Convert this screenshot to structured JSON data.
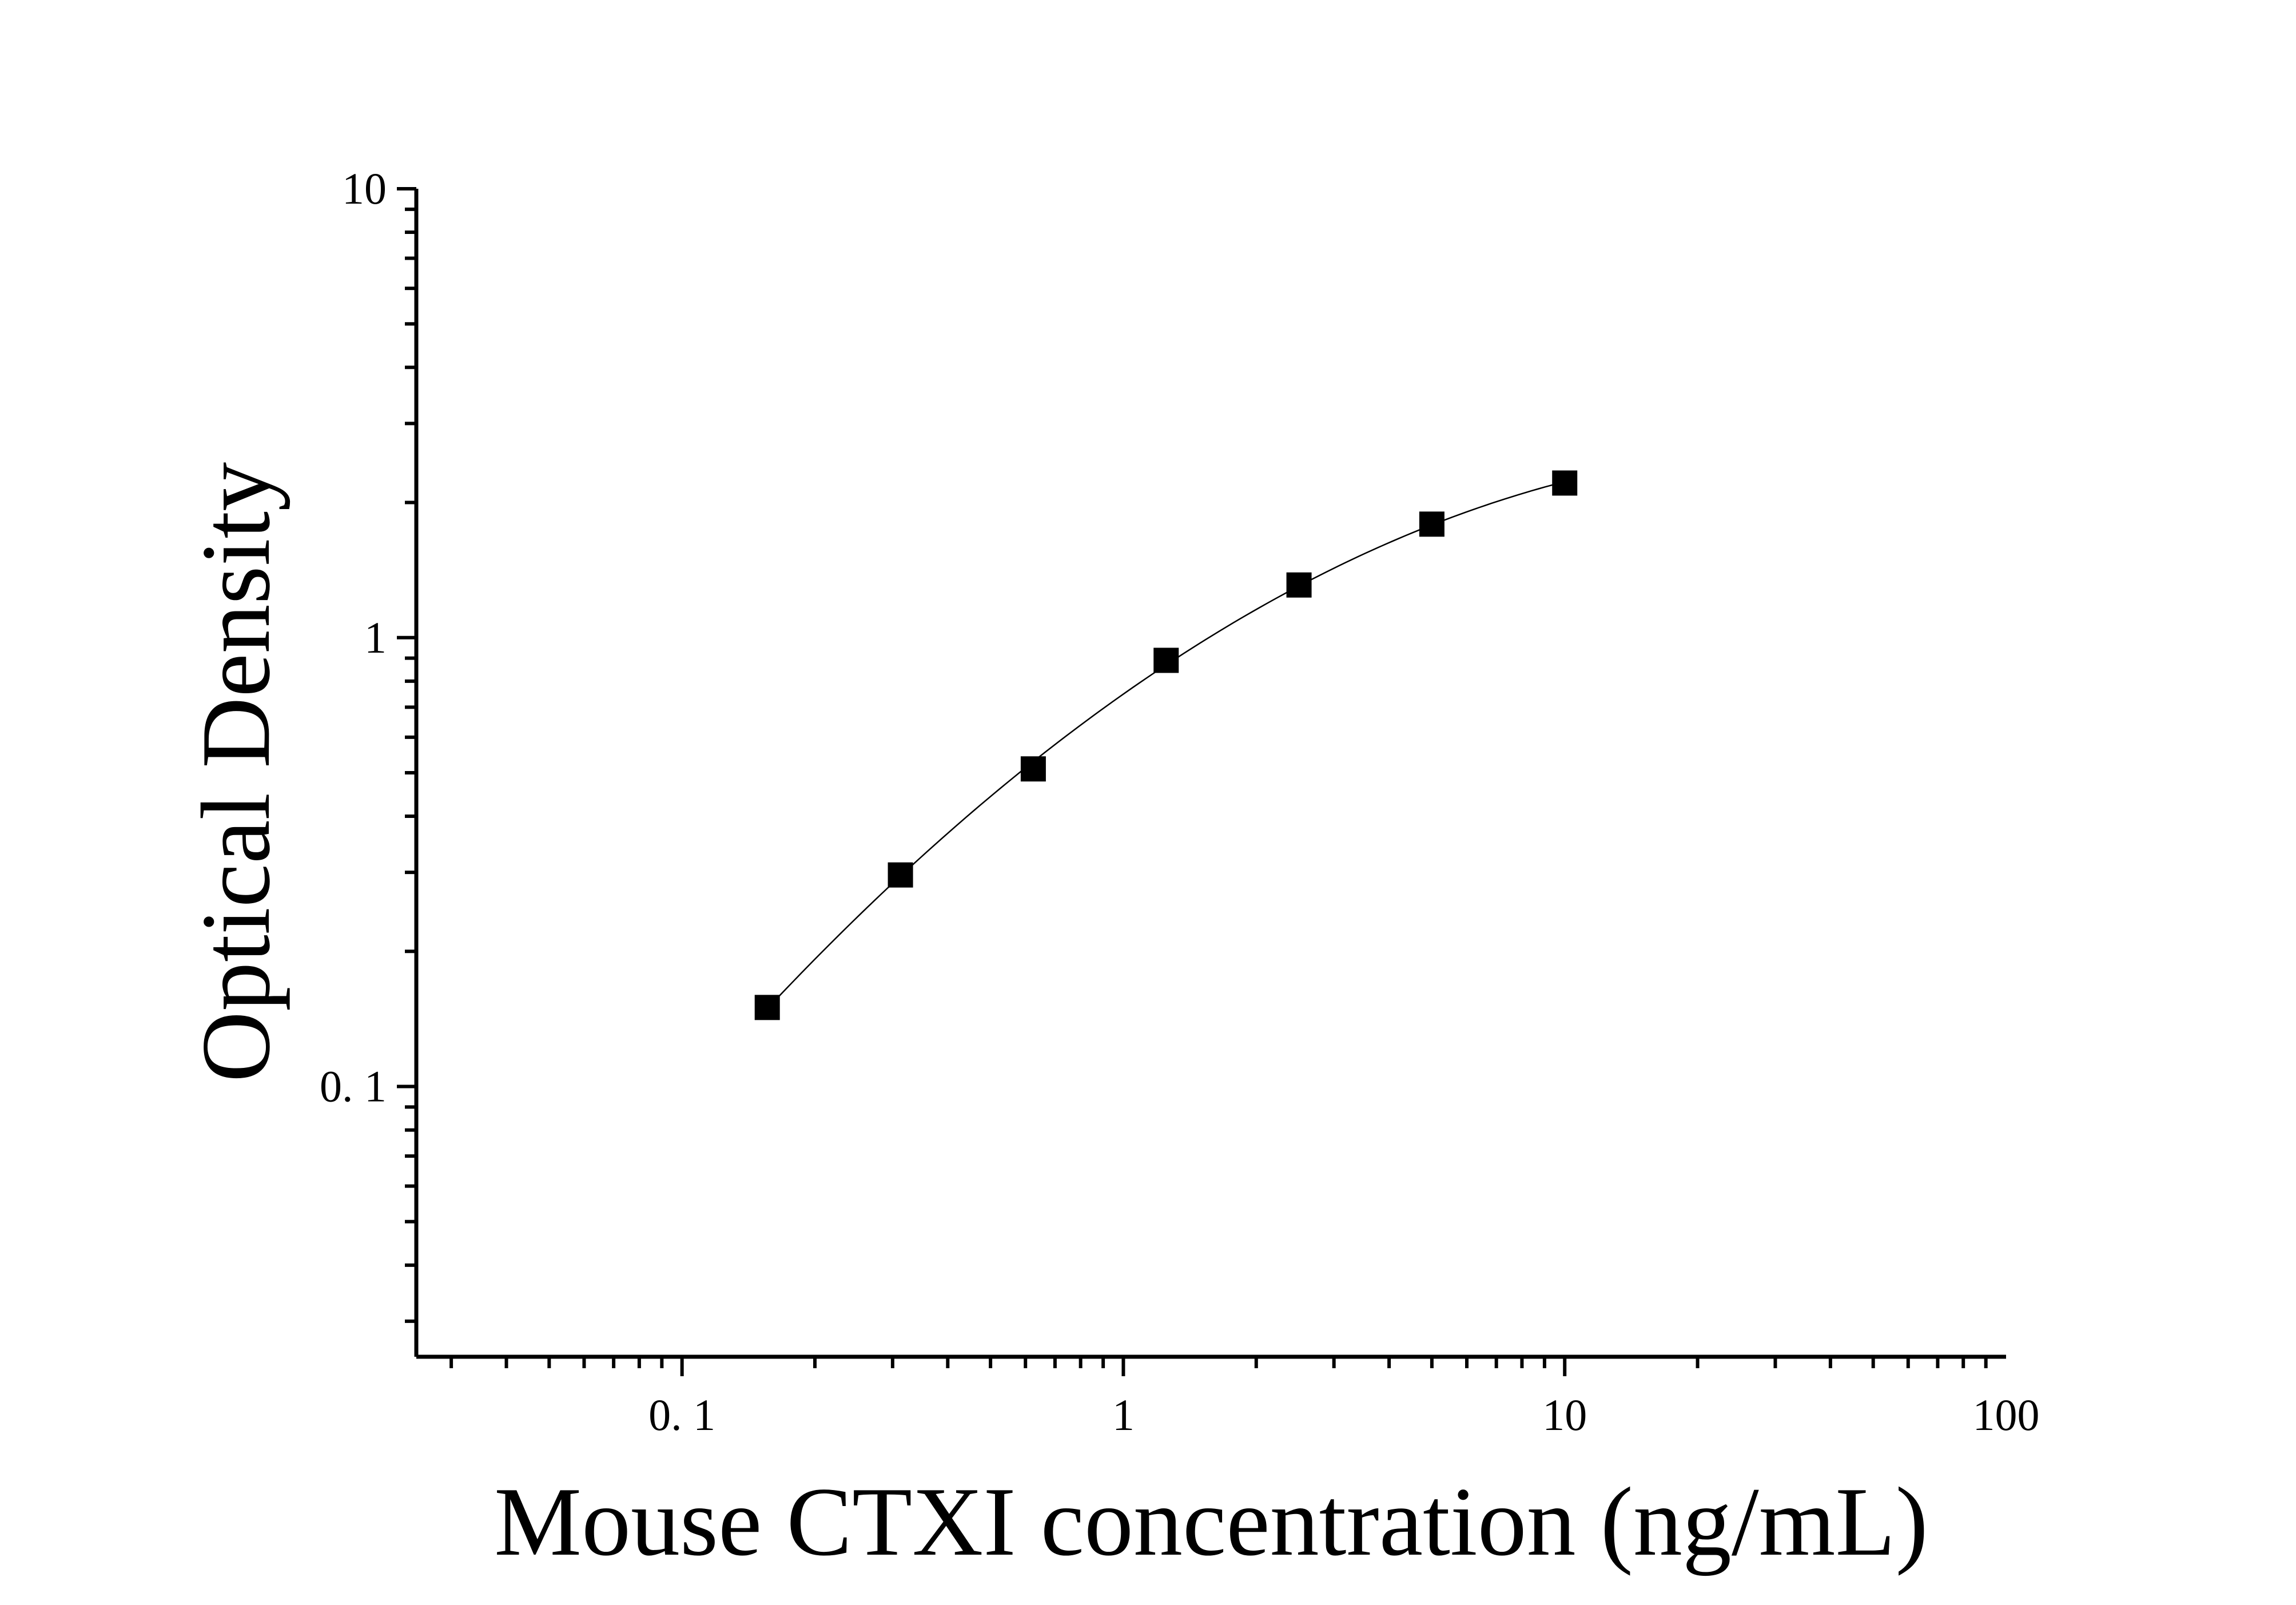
{
  "chart_data": {
    "type": "scatter",
    "xlabel": "Mouse CTXI concentration (ng/mL)",
    "ylabel": "Optical Density",
    "x_scale": "log",
    "y_scale": "log",
    "xlim": [
      0.025,
      100
    ],
    "ylim": [
      0.025,
      10
    ],
    "x_ticks": [
      {
        "value": 0.1,
        "label": "0. 1"
      },
      {
        "value": 1,
        "label": "1"
      },
      {
        "value": 10,
        "label": "10"
      },
      {
        "value": 100,
        "label": "100"
      }
    ],
    "y_ticks": [
      {
        "value": 0.1,
        "label": "0. 1"
      },
      {
        "value": 1,
        "label": "1"
      },
      {
        "value": 10,
        "label": "10"
      }
    ],
    "grid": false,
    "marker": "square",
    "color": "#000000",
    "series": [
      {
        "x": [
          0.156,
          0.3125,
          0.625,
          1.25,
          2.5,
          5,
          10
        ],
        "y": [
          0.15,
          0.296,
          0.51,
          0.89,
          1.31,
          1.79,
          2.21
        ]
      }
    ]
  }
}
